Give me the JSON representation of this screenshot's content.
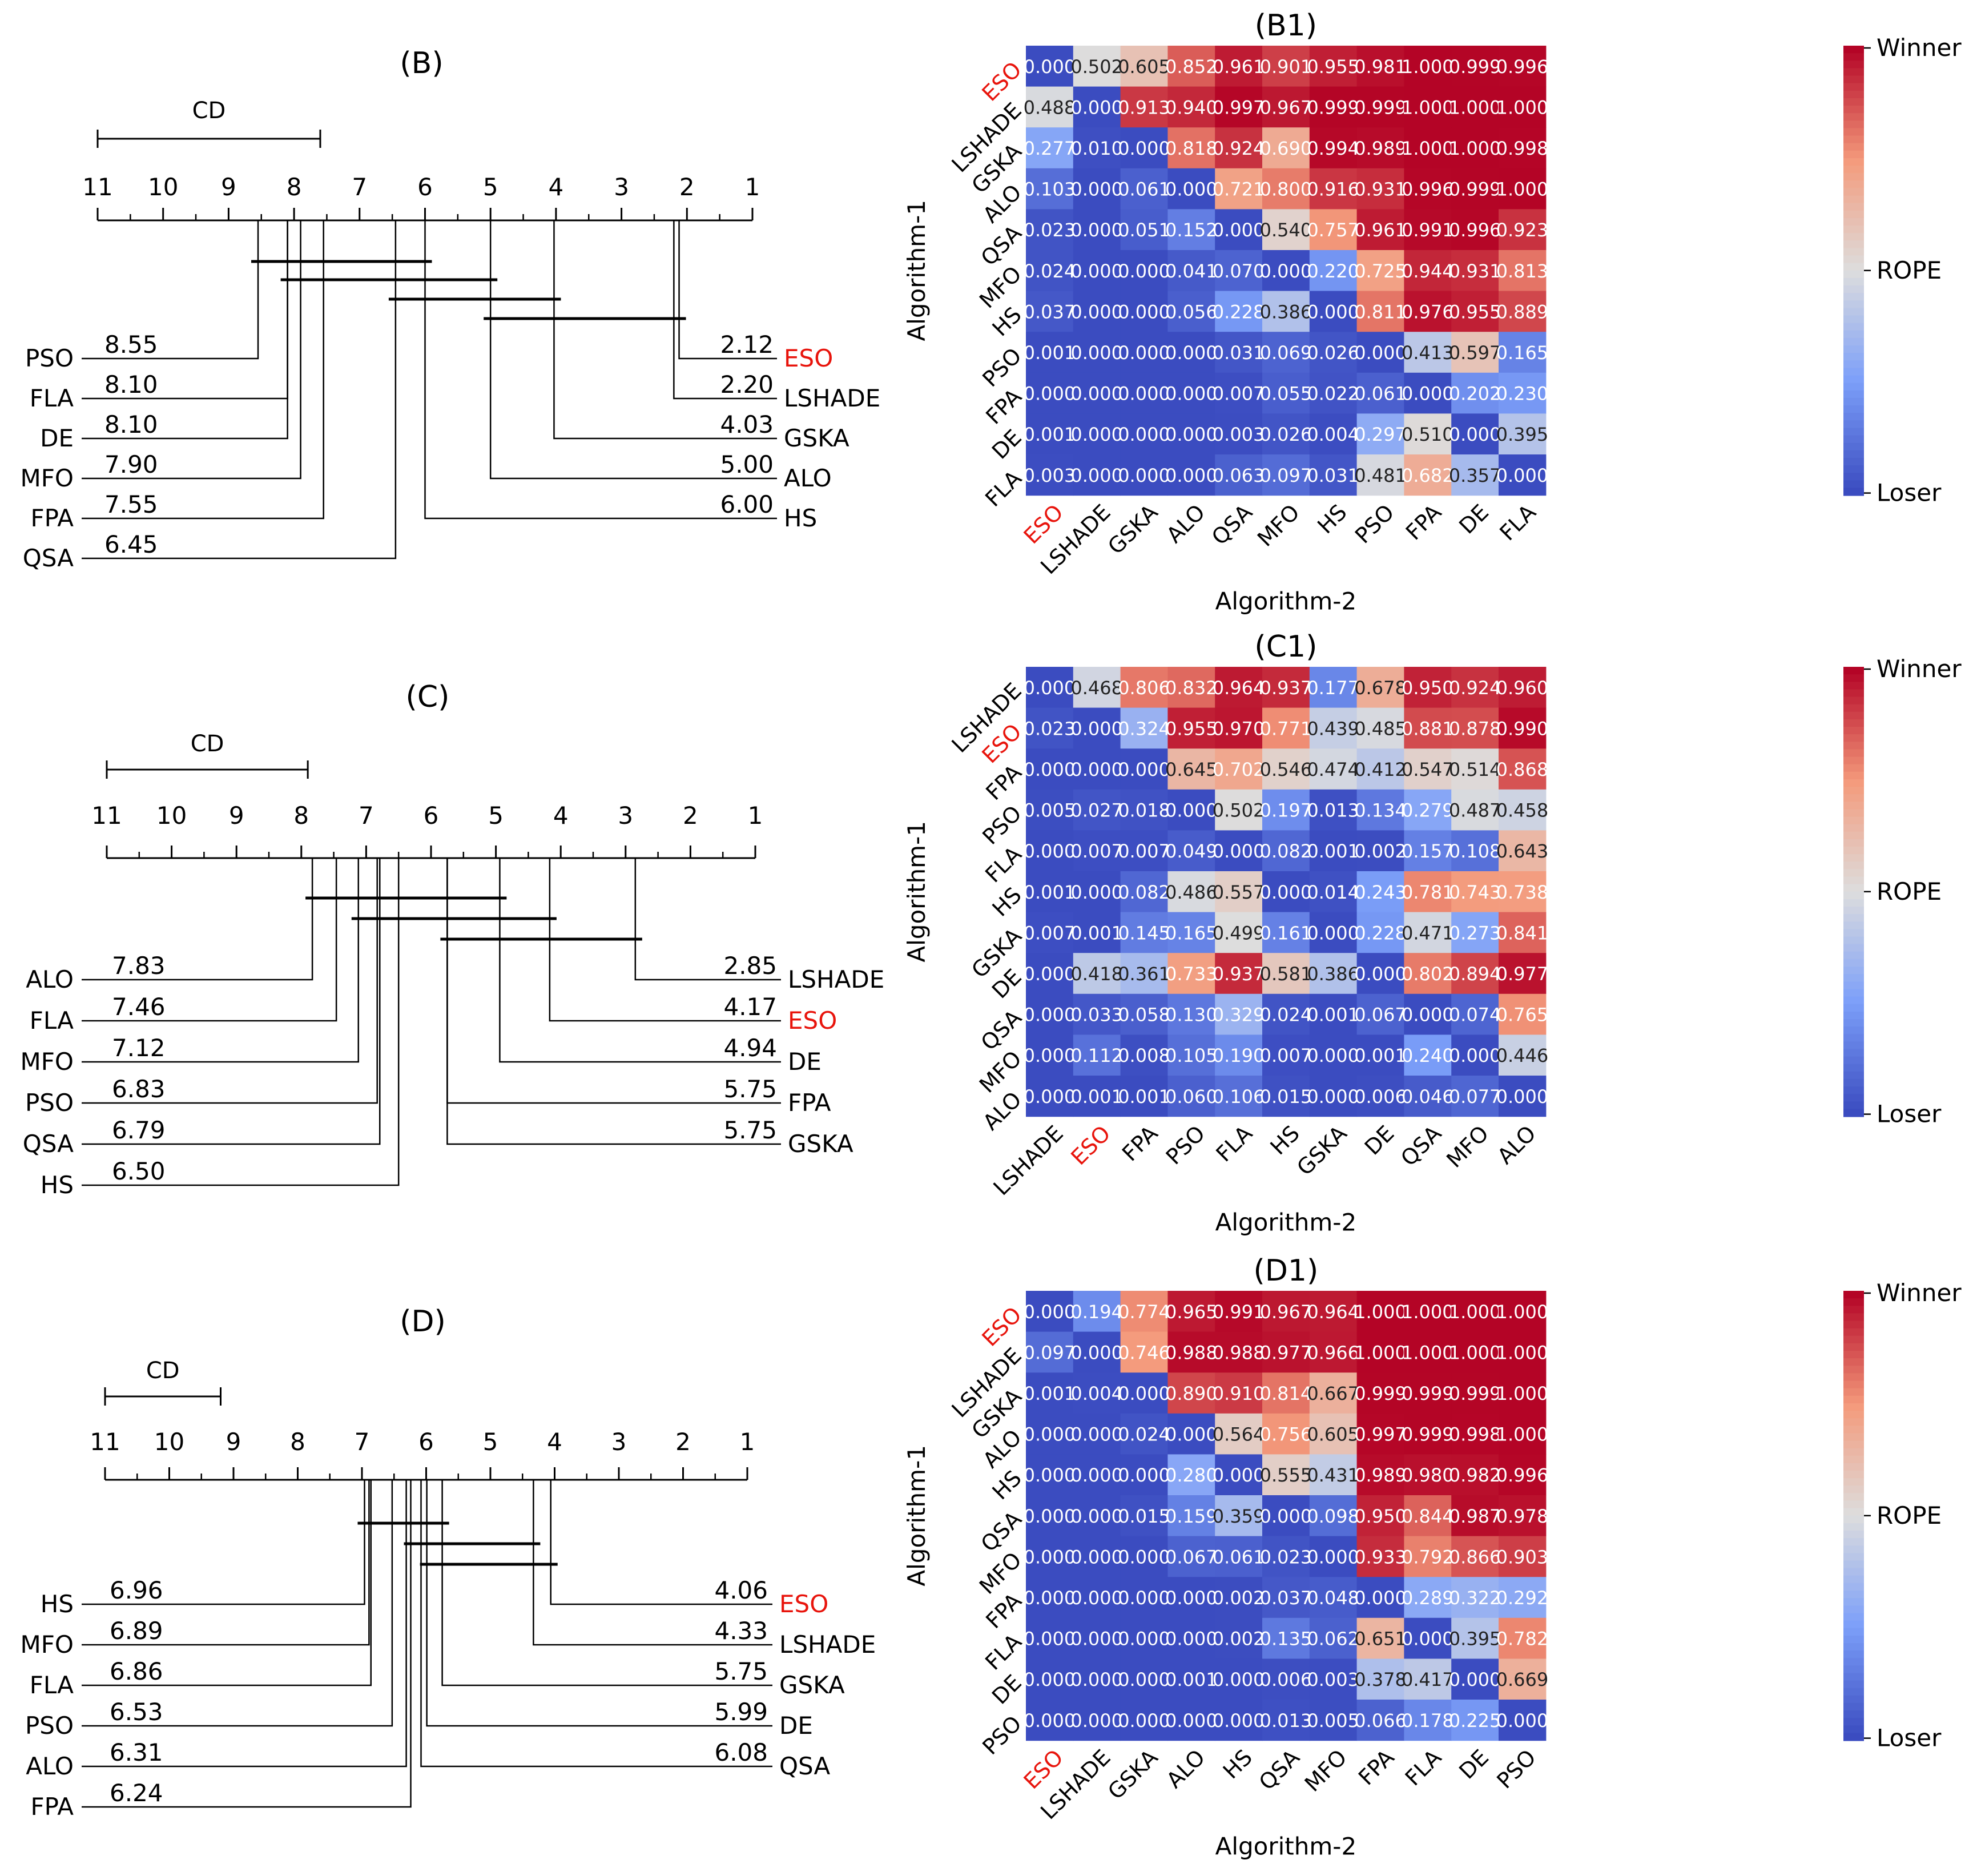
{
  "chart_data": [
    {
      "type": "critical-difference",
      "title": "(B)",
      "cd_label": "CD",
      "cd_value": 3.4,
      "axis_min": 1,
      "axis_max": 11,
      "ticks": [
        "11",
        "10",
        "9",
        "8",
        "7",
        "6",
        "5",
        "4",
        "3",
        "2",
        "1"
      ],
      "left": [
        {
          "name": "PSO",
          "rank": 8.55,
          "label": "8.55",
          "highlight": false
        },
        {
          "name": "FLA",
          "rank": 8.1,
          "label": "8.10",
          "highlight": false
        },
        {
          "name": "DE",
          "rank": 8.1,
          "label": "8.10",
          "highlight": false
        },
        {
          "name": "MFO",
          "rank": 7.9,
          "label": "7.90",
          "highlight": false
        },
        {
          "name": "FPA",
          "rank": 7.55,
          "label": "7.55",
          "highlight": false
        },
        {
          "name": "QSA",
          "rank": 6.45,
          "label": "6.45",
          "highlight": false
        }
      ],
      "right": [
        {
          "name": "ESO",
          "rank": 2.12,
          "label": "2.12",
          "highlight": true
        },
        {
          "name": "LSHADE",
          "rank": 2.2,
          "label": "2.20",
          "highlight": false
        },
        {
          "name": "GSKA",
          "rank": 4.03,
          "label": "4.03",
          "highlight": false
        },
        {
          "name": "ALO",
          "rank": 5.0,
          "label": "5.00",
          "highlight": false
        },
        {
          "name": "HS",
          "rank": 6.0,
          "label": "6.00",
          "highlight": false
        }
      ],
      "cliques": [
        [
          8.55,
          6.0
        ],
        [
          8.1,
          5.0
        ],
        [
          6.45,
          4.03
        ],
        [
          5.0,
          2.12
        ]
      ]
    },
    {
      "type": "heatmap",
      "title": "(B1)",
      "xlabel": "Algorithm-2",
      "ylabel": "Algorithm-1",
      "labels": [
        "ESO",
        "LSHADE",
        "GSKA",
        "ALO",
        "QSA",
        "MFO",
        "HS",
        "PSO",
        "FPA",
        "DE",
        "FLA"
      ],
      "highlight": "ESO",
      "colorbar": {
        "top": "Winner",
        "mid": "ROPE",
        "bottom": "Loser"
      },
      "values": [
        [
          0.0,
          0.502,
          0.605,
          0.852,
          0.961,
          0.901,
          0.955,
          0.981,
          1.0,
          0.999,
          0.996
        ],
        [
          0.488,
          0.0,
          0.913,
          0.94,
          0.997,
          0.967,
          0.999,
          0.999,
          1.0,
          1.0,
          1.0
        ],
        [
          0.277,
          0.01,
          0.0,
          0.818,
          0.924,
          0.69,
          0.994,
          0.989,
          1.0,
          1.0,
          0.998
        ],
        [
          0.103,
          0.0,
          0.061,
          0.0,
          0.721,
          0.8,
          0.916,
          0.931,
          0.996,
          0.999,
          1.0
        ],
        [
          0.023,
          0.0,
          0.051,
          0.152,
          0.0,
          0.54,
          0.757,
          0.961,
          0.991,
          0.996,
          0.923
        ],
        [
          0.024,
          0.0,
          0.0,
          0.041,
          0.07,
          0.0,
          0.22,
          0.725,
          0.944,
          0.931,
          0.813
        ],
        [
          0.037,
          0.0,
          0.0,
          0.056,
          0.228,
          0.386,
          0.0,
          0.811,
          0.976,
          0.955,
          0.889
        ],
        [
          0.001,
          0.0,
          0.0,
          0.0,
          0.031,
          0.069,
          0.026,
          0.0,
          0.413,
          0.597,
          0.165
        ],
        [
          0.0,
          0.0,
          0.0,
          0.0,
          0.007,
          0.055,
          0.022,
          0.061,
          0.0,
          0.202,
          0.23
        ],
        [
          0.001,
          0.0,
          0.0,
          0.0,
          0.003,
          0.026,
          0.004,
          0.297,
          0.51,
          0.0,
          0.395
        ],
        [
          0.003,
          0.0,
          0.0,
          0.0,
          0.063,
          0.097,
          0.031,
          0.481,
          0.682,
          0.357,
          0.0
        ]
      ]
    },
    {
      "type": "critical-difference",
      "title": "(C)",
      "cd_label": "CD",
      "cd_value": 3.1,
      "axis_min": 1,
      "axis_max": 11,
      "ticks": [
        "11",
        "10",
        "9",
        "8",
        "7",
        "6",
        "5",
        "4",
        "3",
        "2",
        "1"
      ],
      "left": [
        {
          "name": "ALO",
          "rank": 7.83,
          "label": "7.83",
          "highlight": false
        },
        {
          "name": "FLA",
          "rank": 7.46,
          "label": "7.46",
          "highlight": false
        },
        {
          "name": "MFO",
          "rank": 7.12,
          "label": "7.12",
          "highlight": false
        },
        {
          "name": "PSO",
          "rank": 6.83,
          "label": "6.83",
          "highlight": false
        },
        {
          "name": "QSA",
          "rank": 6.79,
          "label": "6.79",
          "highlight": false
        },
        {
          "name": "HS",
          "rank": 6.5,
          "label": "6.50",
          "highlight": false
        }
      ],
      "right": [
        {
          "name": "LSHADE",
          "rank": 2.85,
          "label": "2.85",
          "highlight": false
        },
        {
          "name": "ESO",
          "rank": 4.17,
          "label": "4.17",
          "highlight": true
        },
        {
          "name": "DE",
          "rank": 4.94,
          "label": "4.94",
          "highlight": false
        },
        {
          "name": "FPA",
          "rank": 5.75,
          "label": "5.75",
          "highlight": false
        },
        {
          "name": "GSKA",
          "rank": 5.75,
          "label": "5.75",
          "highlight": false
        }
      ],
      "cliques": [
        [
          7.83,
          4.94
        ],
        [
          7.12,
          4.17
        ],
        [
          5.75,
          2.85
        ]
      ]
    },
    {
      "type": "heatmap",
      "title": "(C1)",
      "xlabel": "Algorithm-2",
      "ylabel": "Algorithm-1",
      "labels": [
        "LSHADE",
        "ESO",
        "FPA",
        "PSO",
        "FLA",
        "HS",
        "GSKA",
        "DE",
        "QSA",
        "MFO",
        "ALO"
      ],
      "highlight": "ESO",
      "colorbar": {
        "top": "Winner",
        "mid": "ROPE",
        "bottom": "Loser"
      },
      "values": [
        [
          0.0,
          0.468,
          0.806,
          0.832,
          0.964,
          0.937,
          0.177,
          0.678,
          0.95,
          0.924,
          0.96
        ],
        [
          0.023,
          0.0,
          0.324,
          0.955,
          0.97,
          0.771,
          0.439,
          0.485,
          0.881,
          0.878,
          0.99
        ],
        [
          0.0,
          0.0,
          0.0,
          0.645,
          0.702,
          0.546,
          0.474,
          0.412,
          0.547,
          0.514,
          0.868
        ],
        [
          0.005,
          0.027,
          0.018,
          0.0,
          0.502,
          0.197,
          0.013,
          0.134,
          0.279,
          0.487,
          0.458
        ],
        [
          0.0,
          0.007,
          0.007,
          0.049,
          0.0,
          0.082,
          0.001,
          0.002,
          0.157,
          0.108,
          0.643
        ],
        [
          0.001,
          0.0,
          0.082,
          0.486,
          0.557,
          0.0,
          0.014,
          0.243,
          0.781,
          0.743,
          0.738
        ],
        [
          0.007,
          0.001,
          0.145,
          0.165,
          0.499,
          0.161,
          0.0,
          0.228,
          0.471,
          0.273,
          0.841
        ],
        [
          0.0,
          0.418,
          0.361,
          0.733,
          0.937,
          0.581,
          0.386,
          0.0,
          0.802,
          0.894,
          0.977
        ],
        [
          0.0,
          0.033,
          0.058,
          0.13,
          0.329,
          0.024,
          0.001,
          0.067,
          0.0,
          0.074,
          0.765
        ],
        [
          0.0,
          0.112,
          0.008,
          0.105,
          0.19,
          0.007,
          0.0,
          0.001,
          0.24,
          0.0,
          0.446
        ],
        [
          0.0,
          0.001,
          0.001,
          0.06,
          0.106,
          0.015,
          0.0,
          0.006,
          0.046,
          0.077,
          0.0
        ]
      ]
    },
    {
      "type": "critical-difference",
      "title": "(D)",
      "cd_label": "CD",
      "cd_value": 1.8,
      "axis_min": 1,
      "axis_max": 11,
      "ticks": [
        "11",
        "10",
        "9",
        "8",
        "7",
        "6",
        "5",
        "4",
        "3",
        "2",
        "1"
      ],
      "left": [
        {
          "name": "HS",
          "rank": 6.96,
          "label": "6.96",
          "highlight": false
        },
        {
          "name": "MFO",
          "rank": 6.89,
          "label": "6.89",
          "highlight": false
        },
        {
          "name": "FLA",
          "rank": 6.86,
          "label": "6.86",
          "highlight": false
        },
        {
          "name": "PSO",
          "rank": 6.53,
          "label": "6.53",
          "highlight": false
        },
        {
          "name": "ALO",
          "rank": 6.31,
          "label": "6.31",
          "highlight": false
        },
        {
          "name": "FPA",
          "rank": 6.24,
          "label": "6.24",
          "highlight": false
        }
      ],
      "right": [
        {
          "name": "ESO",
          "rank": 4.06,
          "label": "4.06",
          "highlight": true
        },
        {
          "name": "LSHADE",
          "rank": 4.33,
          "label": "4.33",
          "highlight": false
        },
        {
          "name": "GSKA",
          "rank": 5.75,
          "label": "5.75",
          "highlight": false
        },
        {
          "name": "DE",
          "rank": 5.99,
          "label": "5.99",
          "highlight": false
        },
        {
          "name": "QSA",
          "rank": 6.08,
          "label": "6.08",
          "highlight": false
        }
      ],
      "cliques": [
        [
          6.96,
          5.75
        ],
        [
          6.24,
          4.33
        ],
        [
          5.99,
          4.06
        ]
      ]
    },
    {
      "type": "heatmap",
      "title": "(D1)",
      "xlabel": "Algorithm-2",
      "ylabel": "Algorithm-1",
      "labels": [
        "ESO",
        "LSHADE",
        "GSKA",
        "ALO",
        "HS",
        "QSA",
        "MFO",
        "FPA",
        "FLA",
        "DE",
        "PSO"
      ],
      "highlight": "ESO",
      "colorbar": {
        "top": "Winner",
        "mid": "ROPE",
        "bottom": "Loser"
      },
      "values": [
        [
          0.0,
          0.194,
          0.774,
          0.965,
          0.991,
          0.967,
          0.964,
          1.0,
          1.0,
          1.0,
          1.0
        ],
        [
          0.097,
          0.0,
          0.746,
          0.988,
          0.988,
          0.977,
          0.966,
          1.0,
          1.0,
          1.0,
          1.0
        ],
        [
          0.001,
          0.004,
          0.0,
          0.89,
          0.91,
          0.814,
          0.667,
          0.999,
          0.999,
          0.999,
          1.0
        ],
        [
          0.0,
          0.0,
          0.024,
          0.0,
          0.564,
          0.756,
          0.605,
          0.997,
          0.999,
          0.998,
          1.0
        ],
        [
          0.0,
          0.0,
          0.0,
          0.28,
          0.0,
          0.555,
          0.431,
          0.989,
          0.98,
          0.982,
          0.996
        ],
        [
          0.0,
          0.0,
          0.015,
          0.159,
          0.359,
          0.0,
          0.098,
          0.95,
          0.844,
          0.987,
          0.978
        ],
        [
          0.0,
          0.0,
          0.0,
          0.067,
          0.061,
          0.023,
          0.0,
          0.933,
          0.792,
          0.866,
          0.903
        ],
        [
          0.0,
          0.0,
          0.0,
          0.0,
          0.002,
          0.037,
          0.048,
          0.0,
          0.289,
          0.322,
          0.292
        ],
        [
          0.0,
          0.0,
          0.0,
          0.0,
          0.002,
          0.135,
          0.062,
          0.651,
          0.0,
          0.395,
          0.782
        ],
        [
          0.0,
          0.0,
          0.0,
          0.001,
          0.0,
          0.006,
          0.003,
          0.378,
          0.417,
          0.0,
          0.669
        ],
        [
          0.0,
          0.0,
          0.0,
          0.0,
          0.0,
          0.013,
          0.005,
          0.066,
          0.178,
          0.225,
          0.0
        ]
      ]
    }
  ]
}
